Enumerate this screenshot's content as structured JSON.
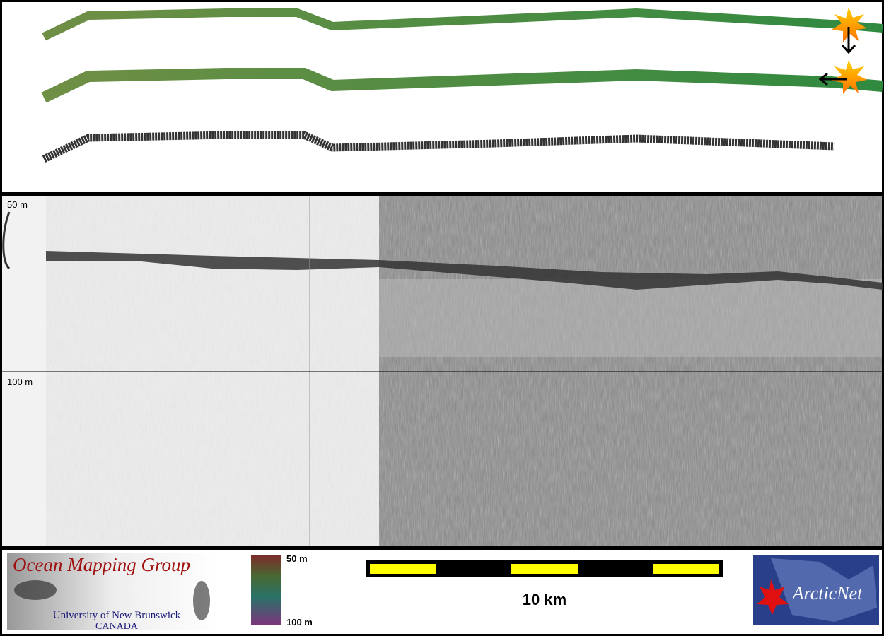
{
  "profile": {
    "depth_labels": [
      "50 m",
      "100 m"
    ]
  },
  "legend": {
    "colorbar_labels": [
      "50 m",
      "100 m"
    ],
    "scale_bar": "10 km"
  },
  "logos": {
    "omg": {
      "title": "Ocean Mapping Group",
      "university": "University of New Brunswick",
      "country": "CANADA"
    },
    "arcticnet": "ArcticNet"
  }
}
